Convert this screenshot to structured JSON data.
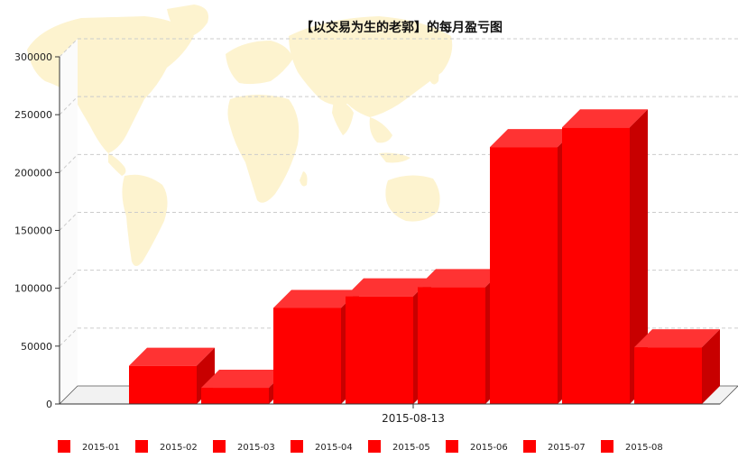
{
  "chart_data": {
    "type": "bar",
    "title": "【以交易为生的老郭】的每月盈亏图",
    "xlabel": "",
    "ylabel": "",
    "categories": [
      "2015-08-13"
    ],
    "series": [
      {
        "name": "2015-01",
        "values": [
          33000
        ]
      },
      {
        "name": "2015-02",
        "values": [
          14000
        ]
      },
      {
        "name": "2015-03",
        "values": [
          83000
        ]
      },
      {
        "name": "2015-04",
        "values": [
          93000
        ]
      },
      {
        "name": "2015-05",
        "values": [
          101000
        ]
      },
      {
        "name": "2015-06",
        "values": [
          222000
        ]
      },
      {
        "name": "2015-07",
        "values": [
          239000
        ]
      },
      {
        "name": "2015-08",
        "values": [
          49000
        ]
      }
    ],
    "ylim": [
      0,
      300000
    ],
    "yticks": [
      "0",
      "50000",
      "100000",
      "150000",
      "200000",
      "250000",
      "300000"
    ],
    "grid": true,
    "legend_position": "bottom",
    "style": "3d"
  },
  "colors": {
    "bar_front": "#ff0000",
    "bar_top": "#ff3333",
    "bar_side": "#c80000",
    "grid": "#cccccc",
    "map": "#fdf3cf"
  }
}
